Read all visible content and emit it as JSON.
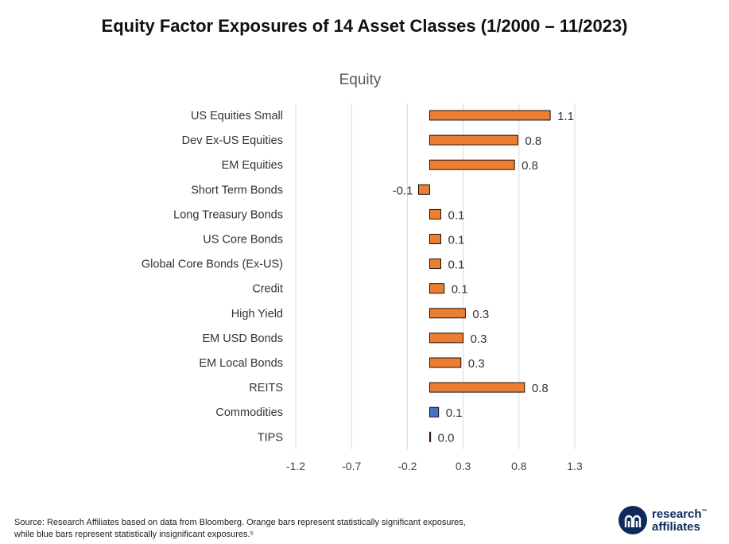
{
  "title": "Equity Factor Exposures of 14 Asset Classes (1/2000 – 11/2023)",
  "footer": {
    "source_line1": "Source: Research Affiliates based on data from Bloomberg. Orange bars represent statistically significant exposures,",
    "source_line2": "while blue bars represent statistically insignificant exposures.⁵"
  },
  "logo": {
    "line1": "research",
    "line2": "affiliates",
    "tm": "™"
  },
  "colors": {
    "significant": "#ed7d31",
    "insignificant": "#4472c4",
    "bar_border": "#000000",
    "grid": "#d9d9d9"
  },
  "chart_data": {
    "type": "bar",
    "orientation": "horizontal",
    "title": "Equity",
    "xlim": [
      -1.2,
      1.3
    ],
    "xticks": [
      -1.2,
      -0.7,
      -0.2,
      0.3,
      0.8,
      1.3
    ],
    "xtick_labels": [
      "-1.2",
      "-0.7",
      "-0.2",
      "0.3",
      "0.8",
      "1.3"
    ],
    "grid": "vertical",
    "categories": [
      "US Equities Small",
      "Dev Ex-US Equities",
      "EM Equities",
      "Short Term Bonds",
      "Long Treasury Bonds",
      "US Core Bonds",
      "Global Core Bonds (Ex-US)",
      "Credit",
      "High Yield",
      "EM USD Bonds",
      "EM Local Bonds",
      "REITS",
      "Commodities",
      "TIPS"
    ],
    "values": [
      1.08,
      0.79,
      0.76,
      -0.1,
      0.1,
      0.1,
      0.1,
      0.13,
      0.32,
      0.3,
      0.28,
      0.85,
      0.08,
      0.0
    ],
    "data_labels": [
      "1.1",
      "0.8",
      "0.8",
      "-0.1",
      "0.1",
      "0.1",
      "0.1",
      "0.1",
      "0.3",
      "0.3",
      "0.3",
      "0.8",
      "0.1",
      "0.0"
    ],
    "significant": [
      true,
      true,
      true,
      true,
      true,
      true,
      true,
      true,
      true,
      true,
      true,
      true,
      false,
      true
    ]
  }
}
